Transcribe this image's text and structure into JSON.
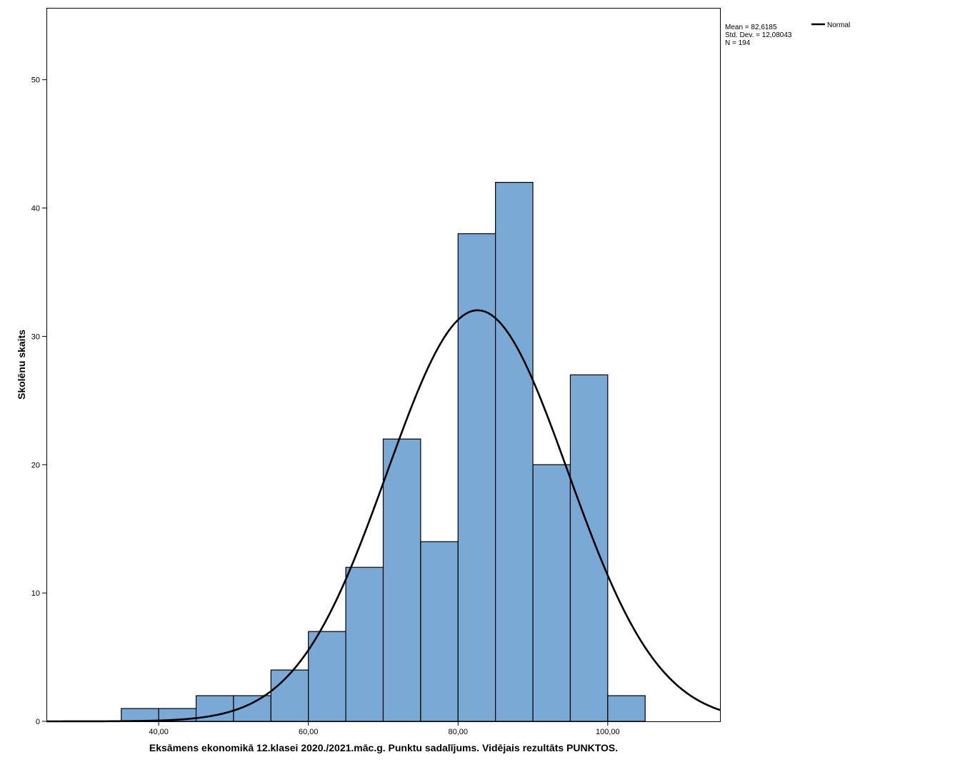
{
  "chart_data": {
    "type": "bar",
    "subtype": "histogram",
    "xlabel": "Eksāmens ekonomikā 12.klasei 2020./2021.māc.g. Punktu sadalījums. Vidējais rezultāts PUNKTOS.",
    "ylabel": "Skolēnu skaits",
    "xlim": [
      25,
      115
    ],
    "ylim": [
      0,
      55.6
    ],
    "x_ticks": [
      40,
      60,
      80,
      100
    ],
    "x_tick_labels": [
      "40,00",
      "60,00",
      "80,00",
      "100,00"
    ],
    "y_ticks": [
      0,
      10,
      20,
      30,
      40,
      50
    ],
    "y_tick_labels": [
      "0",
      "10",
      "20",
      "30",
      "40",
      "50"
    ],
    "bin_width": 5,
    "bins": [
      {
        "x0": 35,
        "x1": 40,
        "count": 1
      },
      {
        "x0": 40,
        "x1": 45,
        "count": 1
      },
      {
        "x0": 45,
        "x1": 50,
        "count": 2
      },
      {
        "x0": 50,
        "x1": 55,
        "count": 2
      },
      {
        "x0": 55,
        "x1": 60,
        "count": 4
      },
      {
        "x0": 60,
        "x1": 65,
        "count": 7
      },
      {
        "x0": 65,
        "x1": 70,
        "count": 12
      },
      {
        "x0": 70,
        "x1": 75,
        "count": 22
      },
      {
        "x0": 75,
        "x1": 80,
        "count": 14
      },
      {
        "x0": 80,
        "x1": 85,
        "count": 38
      },
      {
        "x0": 85,
        "x1": 90,
        "count": 42
      },
      {
        "x0": 90,
        "x1": 95,
        "count": 20
      },
      {
        "x0": 95,
        "x1": 100,
        "count": 27
      },
      {
        "x0": 100,
        "x1": 105,
        "count": 2
      }
    ],
    "normal_curve": {
      "mean": 82.6185,
      "std": 12.08043,
      "n": 194
    },
    "stats_lines": [
      "Mean = 82,6185",
      "Std. Dev. = 12,08043",
      "N = 194"
    ],
    "legend": [
      {
        "label": "Normal",
        "color": "#000000"
      }
    ],
    "legend_position": "top-right",
    "bar_color": "#7ba9d6",
    "bar_edge_color": "#000000",
    "grid": false
  }
}
